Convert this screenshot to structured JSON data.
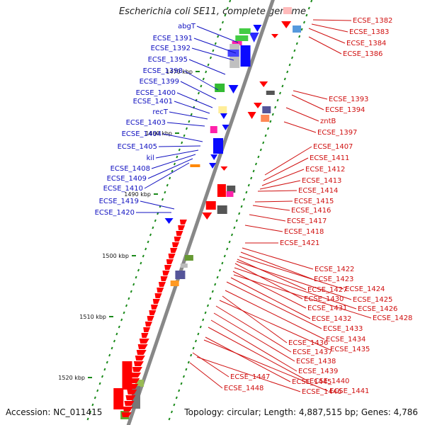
{
  "title": "Escherichia coli SE11, complete genome",
  "footer": {
    "accession": "Accession: NC_011415",
    "topology": "Topology: circular; Length: 4,887,515 bp; Genes: 4,786"
  },
  "colors": {
    "left_label": "#1010c0",
    "right_label": "#d01010",
    "plus_strand": "#0a0aff",
    "minus_strand": "#ff0000",
    "backbone": "#888888",
    "tick": "#1a8a1a"
  },
  "scale_ticks": [
    {
      "label": "1470 kbp"
    },
    {
      "label": "1480 kbp"
    },
    {
      "label": "1490 kbp"
    },
    {
      "label": "1500 kbp"
    },
    {
      "label": "1510 kbp"
    },
    {
      "label": "1520 kbp"
    }
  ],
  "left_labels": [
    "abgT",
    "ECSE_1391",
    "ECSE_1392",
    "ECSE_1395",
    "ECSE_1398",
    "ECSE_1399",
    "ECSE_1400",
    "ECSE_1401",
    "recT",
    "ECSE_1403",
    "ECSE_1404",
    "ECSE_1405",
    "kil",
    "ECSE_1408",
    "ECSE_1409",
    "ECSE_1410",
    "ECSE_1419",
    "ECSE_1420"
  ],
  "right_labels": [
    "ECSE_1382",
    "ECSE_1383",
    "ECSE_1384",
    "ECSE_1386",
    "ECSE_1393",
    "ECSE_1394",
    "zntB",
    "ECSE_1397",
    "ECSE_1407",
    "ECSE_1411",
    "ECSE_1412",
    "ECSE_1413",
    "ECSE_1414",
    "ECSE_1415",
    "ECSE_1416",
    "ECSE_1417",
    "ECSE_1418",
    "ECSE_1421",
    "ECSE_1422",
    "ECSE_1423",
    "ECSE_1424",
    "ECSE_1427",
    "ECSE_1425",
    "ECSE_1430",
    "ECSE_1426",
    "ECSE_1431",
    "ECSE_1428",
    "ECSE_1432",
    "ECSE_1433",
    "ECSE_1434",
    "ECSE_1436",
    "ECSE_1435",
    "ECSE_1437",
    "ECSE_1438",
    "ECSE_1439",
    "ECSE_1440",
    "ECSE_1445",
    "ECSE_1447",
    "ECSE_1441",
    "ECSE_1446",
    "ECSE_1448"
  ]
}
